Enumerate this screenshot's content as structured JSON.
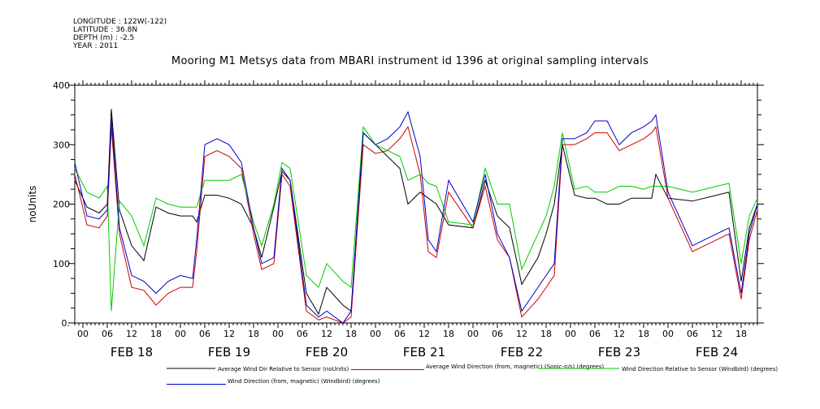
{
  "header": {
    "longitude": "LONGITUDE : 122W(-122)",
    "latitude": "LATITUDE : 36.8N",
    "depth": "DEPTH (m) : -2.5",
    "year": "YEAR : 2011"
  },
  "chart_data": {
    "type": "line",
    "title": "Mooring M1 Metsys data from MBARI instrument id 1396 at original sampling intervals",
    "ylabel": "noUnits",
    "xlabel": "",
    "ylim": [
      0,
      400
    ],
    "xlim": [
      -2,
      166
    ],
    "yticks": [
      0,
      100,
      200,
      300,
      400
    ],
    "ytick_labels": [
      "0.",
      "100",
      "200",
      "300",
      "400"
    ],
    "grid": false,
    "x_hour_labels": [
      "00",
      "06",
      "12",
      "18",
      "00",
      "06",
      "12",
      "18",
      "00",
      "06",
      "12",
      "18",
      "00",
      "06",
      "12",
      "18",
      "00",
      "06",
      "12",
      "18",
      "00",
      "06",
      "12",
      "18",
      "00",
      "06",
      "12",
      "18"
    ],
    "day_labels": [
      "FEB 18",
      "FEB 19",
      "FEB 20",
      "FEB 21",
      "FEB 22",
      "FEB 23",
      "FEB 24"
    ],
    "legend_placement": "below",
    "series": [
      {
        "name": "Average Wind Dir Relative to Sensor (noUnits)",
        "color": "#000000",
        "x": [
          -2,
          1,
          4,
          6,
          7,
          9,
          12,
          15,
          18,
          21,
          24,
          27,
          28,
          30,
          33,
          36,
          39,
          42,
          44,
          47,
          49,
          51,
          55,
          58,
          60,
          64,
          66,
          69,
          72,
          75,
          78,
          80,
          83,
          85,
          87,
          90,
          96,
          99,
          102,
          105,
          108,
          112,
          114,
          116,
          118,
          121,
          124,
          126,
          129,
          132,
          135,
          138,
          140,
          141,
          144,
          150,
          156,
          159,
          162,
          164,
          166
        ],
        "y": [
          240,
          195,
          185,
          200,
          360,
          190,
          130,
          105,
          195,
          185,
          180,
          180,
          170,
          215,
          215,
          210,
          200,
          160,
          110,
          195,
          255,
          240,
          50,
          15,
          60,
          30,
          20,
          320,
          300,
          280,
          260,
          200,
          220,
          210,
          200,
          165,
          160,
          240,
          180,
          160,
          65,
          110,
          150,
          200,
          300,
          215,
          210,
          210,
          200,
          200,
          210,
          210,
          210,
          250,
          210,
          205,
          215,
          220,
          70,
          160,
          200
        ]
      },
      {
        "name": "Average Wind Direction (from, magnetic) (Sonic-n/s) (degrees)",
        "color": "#cc0000",
        "x": [
          -2,
          1,
          4,
          6,
          7,
          9,
          12,
          15,
          18,
          21,
          24,
          27,
          28,
          30,
          33,
          36,
          39,
          42,
          44,
          47,
          49,
          51,
          55,
          58,
          60,
          64,
          66,
          69,
          72,
          75,
          78,
          80,
          83,
          85,
          87,
          90,
          96,
          99,
          102,
          105,
          108,
          112,
          114,
          116,
          118,
          121,
          124,
          126,
          129,
          132,
          135,
          138,
          140,
          141,
          144,
          150,
          156,
          159,
          162,
          164,
          166
        ],
        "y": [
          250,
          165,
          160,
          180,
          330,
          150,
          60,
          55,
          30,
          50,
          60,
          60,
          120,
          280,
          290,
          280,
          260,
          150,
          90,
          100,
          250,
          230,
          20,
          5,
          10,
          0,
          10,
          300,
          285,
          290,
          310,
          330,
          250,
          120,
          110,
          220,
          160,
          230,
          140,
          110,
          10,
          40,
          60,
          80,
          300,
          300,
          310,
          320,
          320,
          290,
          300,
          310,
          320,
          330,
          210,
          120,
          140,
          150,
          40,
          140,
          190
        ]
      },
      {
        "name": "Wind Direction Relative to Sensor (Windbird) (degrees)",
        "color": "#00cc00",
        "x": [
          -2,
          1,
          4,
          6,
          7,
          9,
          12,
          15,
          18,
          21,
          24,
          27,
          28,
          30,
          33,
          36,
          39,
          42,
          44,
          47,
          49,
          51,
          55,
          58,
          60,
          64,
          66,
          69,
          72,
          75,
          78,
          80,
          83,
          85,
          87,
          90,
          96,
          99,
          102,
          105,
          108,
          112,
          114,
          116,
          118,
          121,
          124,
          126,
          129,
          132,
          135,
          138,
          140,
          141,
          144,
          150,
          156,
          159,
          162,
          164,
          166
        ],
        "y": [
          260,
          220,
          210,
          230,
          20,
          205,
          180,
          130,
          210,
          200,
          195,
          195,
          195,
          240,
          240,
          240,
          250,
          170,
          130,
          200,
          270,
          260,
          80,
          60,
          100,
          70,
          60,
          330,
          300,
          290,
          280,
          240,
          250,
          235,
          230,
          170,
          165,
          260,
          200,
          200,
          90,
          150,
          180,
          230,
          320,
          225,
          230,
          220,
          220,
          230,
          230,
          225,
          230,
          230,
          230,
          220,
          230,
          235,
          100,
          180,
          210
        ]
      },
      {
        "name": "Wind Direction (from, magnetic) (Windbird) (degrees)",
        "color": "#0000cc",
        "x": [
          -2,
          1,
          4,
          6,
          7,
          9,
          12,
          15,
          18,
          21,
          24,
          27,
          28,
          30,
          33,
          36,
          39,
          42,
          44,
          47,
          49,
          51,
          55,
          58,
          60,
          64,
          66,
          69,
          72,
          75,
          78,
          80,
          83,
          85,
          87,
          90,
          96,
          99,
          102,
          105,
          108,
          112,
          114,
          116,
          118,
          121,
          124,
          126,
          129,
          132,
          135,
          138,
          140,
          141,
          144,
          150,
          156,
          159,
          162,
          164,
          166
        ],
        "y": [
          270,
          180,
          175,
          190,
          345,
          160,
          80,
          70,
          50,
          70,
          80,
          75,
          140,
          300,
          310,
          300,
          270,
          160,
          100,
          110,
          260,
          240,
          30,
          10,
          20,
          0,
          20,
          320,
          300,
          310,
          330,
          355,
          280,
          140,
          120,
          240,
          170,
          250,
          150,
          110,
          20,
          60,
          80,
          100,
          310,
          310,
          320,
          340,
          340,
          300,
          320,
          330,
          340,
          350,
          220,
          130,
          150,
          160,
          50,
          150,
          200
        ]
      }
    ]
  }
}
